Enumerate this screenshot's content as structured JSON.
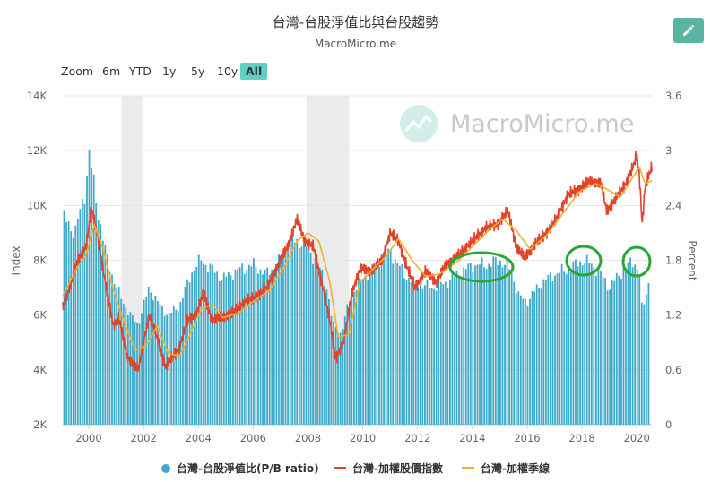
{
  "header": {
    "title": "台灣-台股淨值比與台股趨勢",
    "subtitle": "MacroMicro.me",
    "edit_icon": "pencil-icon"
  },
  "watermark": {
    "text": "MacroMicro.me",
    "icon": "macromicro-logo-icon"
  },
  "zoom": {
    "label": "Zoom",
    "buttons": [
      "6m",
      "YTD",
      "1y",
      "5y",
      "10y",
      "All"
    ],
    "active": "All"
  },
  "colors": {
    "bars": "#3ea9c9",
    "index_line": "#e0442a",
    "ma_line": "#f2b12c",
    "highlight_ellipse": "#2aa637",
    "recession_band": "#ebebeb",
    "accent": "#5ed1c1"
  },
  "legend": [
    {
      "label": "台灣-台股淨值比(P/B ratio)",
      "marker": "dot"
    },
    {
      "label": "台灣-加權股價指數",
      "marker": "line"
    },
    {
      "label": "台灣-加權季線",
      "marker": "line"
    }
  ],
  "chart_data": {
    "type": "bar+line",
    "x_ticks": [
      "2000",
      "2002",
      "2004",
      "2006",
      "2008",
      "2010",
      "2012",
      "2014",
      "2016",
      "2018",
      "2020"
    ],
    "xlim": [
      1999.05,
      2020.55
    ],
    "y_left": {
      "label": "Index",
      "ticks": [
        "2K",
        "4K",
        "6K",
        "8K",
        "10K",
        "12K",
        "14K"
      ],
      "range": [
        2000,
        14000
      ]
    },
    "y_right": {
      "label": "Percent",
      "ticks": [
        "0",
        "0.6",
        "1.2",
        "1.8",
        "2.4",
        "3",
        "3.6"
      ],
      "range": [
        0,
        3.6
      ]
    },
    "shaded_periods": [
      [
        2001.2,
        2001.95
      ],
      [
        2007.95,
        2009.5
      ]
    ],
    "series": [
      {
        "name": "台灣-台股淨值比(P/B ratio)",
        "type": "bar",
        "axis": "right",
        "x": [
          1999.0,
          1999.5,
          1999.9,
          2000.0,
          2000.1,
          2000.3,
          2000.6,
          2001.0,
          2001.5,
          2001.8,
          2002.2,
          2002.6,
          2002.9,
          2003.3,
          2003.8,
          2004.1,
          2004.5,
          2004.9,
          2005.5,
          2006.0,
          2006.5,
          2007.0,
          2007.3,
          2007.8,
          2008.3,
          2008.7,
          2008.9,
          2009.2,
          2009.6,
          2010.0,
          2010.5,
          2011.0,
          2011.5,
          2011.9,
          2012.5,
          2013.0,
          2013.5,
          2014.0,
          2014.5,
          2015.0,
          2015.4,
          2015.7,
          2016.0,
          2016.5,
          2017.0,
          2017.5,
          2018.0,
          2018.4,
          2018.8,
          2019.0,
          2019.5,
          2019.9,
          2020.1,
          2020.2,
          2020.4
        ],
        "values": [
          2.3,
          2.1,
          2.6,
          3.0,
          2.8,
          2.4,
          1.9,
          1.5,
          1.2,
          1.1,
          1.5,
          1.3,
          1.2,
          1.3,
          1.7,
          1.8,
          1.7,
          1.6,
          1.7,
          1.75,
          1.65,
          1.8,
          2.0,
          2.0,
          1.8,
          1.5,
          1.1,
          1.0,
          1.45,
          1.6,
          1.75,
          1.9,
          1.65,
          1.55,
          1.5,
          1.55,
          1.65,
          1.75,
          1.75,
          1.8,
          1.7,
          1.4,
          1.35,
          1.55,
          1.65,
          1.7,
          1.8,
          1.75,
          1.6,
          1.5,
          1.7,
          1.8,
          1.65,
          1.2,
          1.55
        ]
      },
      {
        "name": "台灣-加權股價指數",
        "type": "line",
        "axis": "left",
        "x": [
          1999.05,
          1999.3,
          1999.6,
          1999.9,
          2000.1,
          2000.3,
          2000.6,
          2000.9,
          2001.1,
          2001.4,
          2001.8,
          2002.2,
          2002.5,
          2002.8,
          2003.0,
          2003.3,
          2003.6,
          2003.9,
          2004.2,
          2004.5,
          2004.8,
          2005.3,
          2005.7,
          2006.0,
          2006.5,
          2006.9,
          2007.3,
          2007.6,
          2007.9,
          2008.2,
          2008.5,
          2008.8,
          2009.0,
          2009.3,
          2009.6,
          2009.9,
          2010.3,
          2010.7,
          2011.0,
          2011.3,
          2011.6,
          2011.9,
          2012.3,
          2012.7,
          2013.0,
          2013.5,
          2014.0,
          2014.5,
          2014.9,
          2015.3,
          2015.6,
          2015.9,
          2016.3,
          2016.7,
          2017.0,
          2017.5,
          2017.9,
          2018.3,
          2018.7,
          2018.9,
          2019.2,
          2019.6,
          2019.9,
          2020.0,
          2020.1,
          2020.2,
          2020.3,
          2020.55
        ],
        "values": [
          6300,
          7000,
          8000,
          8500,
          9900,
          9000,
          7200,
          5600,
          5900,
          4500,
          4000,
          6000,
          5200,
          4100,
          4400,
          4800,
          5800,
          6000,
          6800,
          5800,
          5900,
          6100,
          6500,
          6600,
          7000,
          7800,
          8600,
          9500,
          8700,
          8500,
          7200,
          5800,
          4400,
          5000,
          6800,
          7700,
          7600,
          8000,
          9000,
          8700,
          7800,
          7000,
          7600,
          7200,
          7800,
          8200,
          8700,
          9200,
          9300,
          9800,
          8500,
          8100,
          8600,
          9000,
          9400,
          10400,
          10600,
          10900,
          10800,
          9800,
          10200,
          10800,
          11500,
          11900,
          11000,
          9300,
          10700,
          11400
        ]
      },
      {
        "name": "台灣-加權季線",
        "type": "line",
        "axis": "left",
        "x": [
          1999.05,
          1999.5,
          1999.9,
          2000.2,
          2000.5,
          2000.9,
          2001.3,
          2001.7,
          2002.1,
          2002.5,
          2002.9,
          2003.3,
          2003.7,
          2004.1,
          2004.5,
          2004.9,
          2005.5,
          2006.0,
          2006.6,
          2007.1,
          2007.6,
          2008.0,
          2008.4,
          2008.8,
          2009.1,
          2009.5,
          2009.9,
          2010.4,
          2010.9,
          2011.3,
          2011.8,
          2012.3,
          2012.8,
          2013.4,
          2014.0,
          2014.6,
          2015.1,
          2015.6,
          2016.1,
          2016.7,
          2017.3,
          2017.9,
          2018.5,
          2018.9,
          2019.4,
          2019.9,
          2020.1,
          2020.3,
          2020.55
        ],
        "values": [
          6700,
          7600,
          8200,
          9300,
          8500,
          6900,
          5700,
          4700,
          4900,
          5600,
          4600,
          4500,
          5300,
          6200,
          6400,
          5900,
          6100,
          6500,
          6900,
          7700,
          8700,
          9000,
          8700,
          7200,
          5200,
          5300,
          7200,
          7700,
          8200,
          8800,
          8000,
          7400,
          7500,
          7900,
          8500,
          9100,
          9500,
          9100,
          8400,
          8900,
          9700,
          10500,
          10800,
          10600,
          10300,
          11100,
          11400,
          10800,
          10900
        ]
      }
    ]
  }
}
